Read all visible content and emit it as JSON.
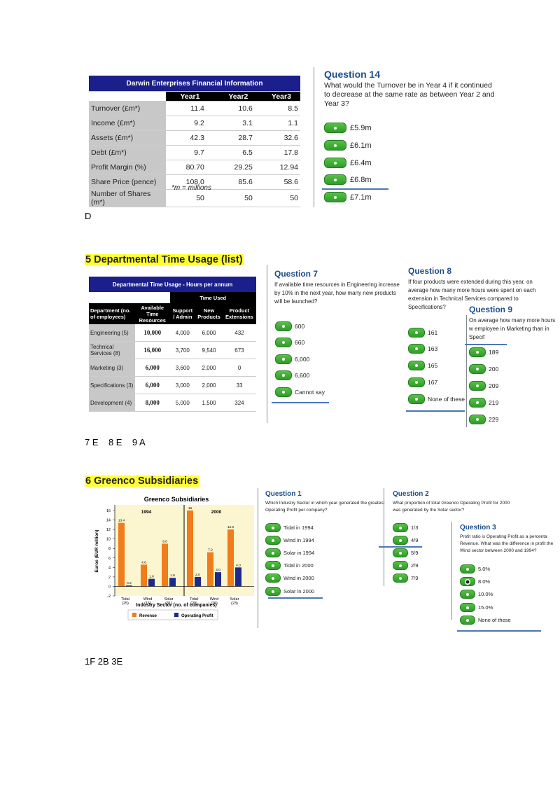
{
  "fin": {
    "title": "Darwin Enterprises Financial Information",
    "headers": [
      "Year1",
      "Year2",
      "Year3"
    ],
    "rows": [
      {
        "label": "Turnover (£m*)",
        "v": [
          "11.4",
          "10.6",
          "8.5"
        ]
      },
      {
        "label": "Income (£m*)",
        "v": [
          "9.2",
          "3.1",
          "1.1"
        ]
      },
      {
        "label": "Assets (£m*)",
        "v": [
          "42.3",
          "28.7",
          "32.6"
        ]
      },
      {
        "label": "Debt (£m*)",
        "v": [
          "9.7",
          "6.5",
          "17.8"
        ]
      },
      {
        "label": "Profit Margin (%)",
        "v": [
          "80.70",
          "29.25",
          "12.94"
        ]
      },
      {
        "label": "Share Price (pence)",
        "v": [
          "108.0",
          "85.6",
          "58.6"
        ]
      },
      {
        "label": "Number of Shares (m*)",
        "v": [
          "50",
          "50",
          "50"
        ]
      }
    ],
    "note": "*m = millions"
  },
  "q14": {
    "title": "Question 14",
    "text": "What would the Turnover be in Year 4 if it continued to decrease at the same rate as between Year 2 and Year 3?",
    "options": [
      "£5.9m",
      "£6.1m",
      "£6.4m",
      "£6.8m",
      "£7.1m"
    ]
  },
  "answer1": "D",
  "sec5": {
    "heading": "5  Departmental Time Usage (list)",
    "table_title": "Departmental Time Usage - Hours per annum",
    "time_used": "Time Used",
    "col_dept": "Department (no. of employees)",
    "col_avail": "Available Time Resources",
    "col_support": "Support / Admin",
    "col_new": "New Products",
    "col_ext": "Product Extensions",
    "rows": [
      {
        "dept": "Engineering (5)",
        "avail": "10,000",
        "support": "4,000",
        "newp": "6,000",
        "ext": "432"
      },
      {
        "dept": "Technical Services (8)",
        "avail": "16,000",
        "support": "3,700",
        "newp": "9,540",
        "ext": "673"
      },
      {
        "dept": "Marketing (3)",
        "avail": "6,000",
        "support": "3,600",
        "newp": "2,000",
        "ext": "0"
      },
      {
        "dept": "Specifications (3)",
        "avail": "6,000",
        "support": "3,000",
        "newp": "2,000",
        "ext": "33"
      },
      {
        "dept": "Development (4)",
        "avail": "8,000",
        "support": "5,000",
        "newp": "1,500",
        "ext": "324"
      }
    ]
  },
  "q7": {
    "title": "Question 7",
    "text": "If available time resources in Engineering increase by 10% in the next year, how many new products will be launched?",
    "options": [
      "600",
      "660",
      "6,000",
      "6,600",
      "Cannot say"
    ]
  },
  "q8": {
    "title": "Question 8",
    "text": "If four products were extended during this year, on average how many more hours were spent on each extension in Technical Services compared to Specifications?",
    "options": [
      "161",
      "163",
      "165",
      "167",
      "None of these"
    ]
  },
  "q9": {
    "title": "Question 9",
    "text": "On average how many more hours w employee in Marketing than in Specif",
    "options": [
      "189",
      "200",
      "209",
      "219",
      "229"
    ]
  },
  "answer2": "7 E    8 E    9 A",
  "sec6": {
    "heading": "6 Greenco Subsidiaries"
  },
  "chart_data": {
    "type": "bar",
    "title": "Greenco Subsidiaries",
    "panels": [
      "1994",
      "2000"
    ],
    "categories": [
      "Tidal (25)",
      "Wind (16)",
      "Solar (31)",
      "Tidal (20)",
      "Wind (26)",
      "Solar (23)"
    ],
    "category_names": [
      "Tidal",
      "Wind",
      "Solar",
      "Tidal",
      "Wind",
      "Solar"
    ],
    "category_counts": [
      "(25)",
      "(16)",
      "(31)",
      "(20)",
      "(26)",
      "(23)"
    ],
    "series": [
      {
        "name": "Revenue",
        "color": "#f07c1a",
        "values": [
          13.4,
          4.6,
          9.0,
          16.0,
          7.2,
          12.0
        ],
        "labels": [
          "13.4",
          "4.6",
          "9.0",
          "16",
          "7.2",
          "12.0"
        ]
      },
      {
        "name": "Operating Profit",
        "color": "#1b2a8c",
        "values": [
          0.2,
          1.6,
          1.8,
          2.0,
          3.0,
          4.0
        ],
        "labels": [
          "0.2",
          "1.6",
          "1.8",
          "2.0",
          "3.0",
          "4.0"
        ]
      }
    ],
    "xlabel": "Industry Sector (no. of companies)",
    "ylabel": "Euros (EUR million)",
    "ylim": [
      -2,
      16
    ],
    "yticks": [
      "-2",
      "0",
      "2",
      "4",
      "6",
      "8",
      "10",
      "12",
      "14",
      "16"
    ],
    "grid": false,
    "legend": "bottom"
  },
  "q1": {
    "title": "Question 1",
    "text": "Which Industry Sector in which year generated the greatest Operating Profit per company?",
    "options": [
      "Tidal in 1994",
      "Wind in 1994",
      "Solar in 1994",
      "Tidal in 2000",
      "Wind in 2000",
      "Solar in 2000"
    ]
  },
  "q2": {
    "title": "Question 2",
    "text": "What proportion of total Greenco Operating Profit for 2000 was generated by the Solar sector?",
    "options": [
      "1/3",
      "4/9",
      "5/9",
      "2/9",
      "7/9"
    ]
  },
  "q3": {
    "title": "Question 3",
    "text": "Profit ratio is Operating Profit as a percenta Revenue. What was the difference in profit the Wind sector between 2000 and 1994?",
    "options": [
      "5.0%",
      "8.0%",
      "10.0%",
      "15.0%",
      "None of these"
    ]
  },
  "answer3": "1F 2B 3E",
  "colors": {
    "accent": "#1c4e8c",
    "header": "#1b1f8c",
    "button": "#3aa832",
    "highlight": "#ffff33"
  }
}
